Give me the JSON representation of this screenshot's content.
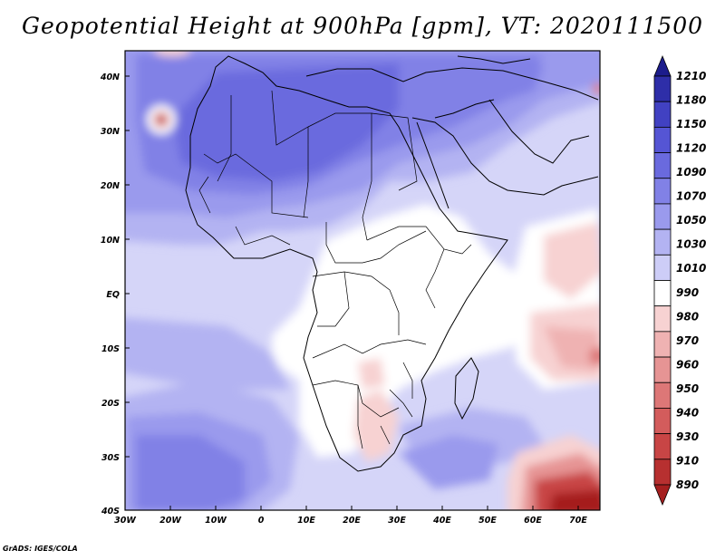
{
  "title": "Geopotential Height at 900hPa [gpm], VT: 2020111500",
  "credit": "GrADS: IGES/COLA",
  "colorbar": {
    "labels": [
      "1210",
      "1180",
      "1150",
      "1120",
      "1090",
      "1070",
      "1050",
      "1030",
      "1010",
      "990",
      "980",
      "970",
      "960",
      "950",
      "940",
      "930",
      "910",
      "890"
    ],
    "colors": [
      "#1c1c8c",
      "#2e2ea8",
      "#4141c2",
      "#5555d4",
      "#6a6ade",
      "#8181e6",
      "#9a9aed",
      "#b3b3f2",
      "#cdcdf7",
      "#ffffff",
      "#f7d2d2",
      "#efb2b2",
      "#e69494",
      "#dd7777",
      "#d35c5c",
      "#c84545",
      "#b73030",
      "#a51f1f"
    ]
  },
  "axes": {
    "x_labels": [
      "30W",
      "20W",
      "10W",
      "0",
      "10E",
      "20E",
      "30E",
      "40E",
      "50E",
      "60E",
      "70E"
    ],
    "y_labels": [
      "40N",
      "30N",
      "20N",
      "10N",
      "EQ",
      "10S",
      "20S",
      "30S",
      "40S"
    ]
  }
}
